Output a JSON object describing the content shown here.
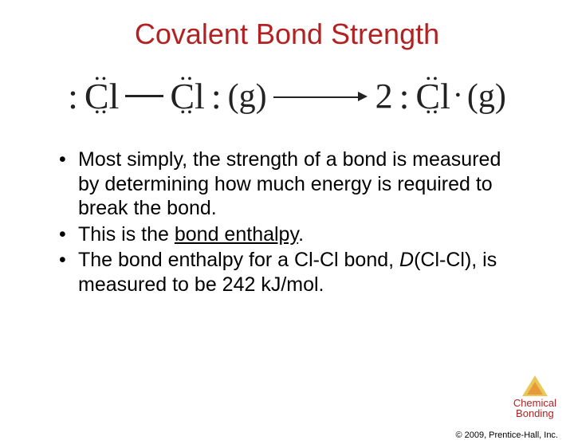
{
  "colors": {
    "title": "#b22222",
    "text": "#000000",
    "logo_outer": "#e8c85a",
    "logo_inner": "#e89a3a",
    "logo_text": "#b22222"
  },
  "title": "Covalent Bond Strength",
  "equation": {
    "reactant_left": "Cl",
    "reactant_right": "Cl",
    "phase_left": "(g)",
    "coeff": "2",
    "product": "Cl",
    "phase_right": "(g)"
  },
  "bullets": [
    "Most simply, the strength of a bond is measured by determining how much energy is required to break the bond.",
    "This is the bond enthalpy.",
    "The bond enthalpy for a Cl-Cl bond, D(Cl-Cl), is measured to be 242 kJ/mol."
  ],
  "logo": {
    "line1": "Chemical",
    "line2": "Bonding"
  },
  "copyright": "© 2009, Prentice-Hall, Inc."
}
